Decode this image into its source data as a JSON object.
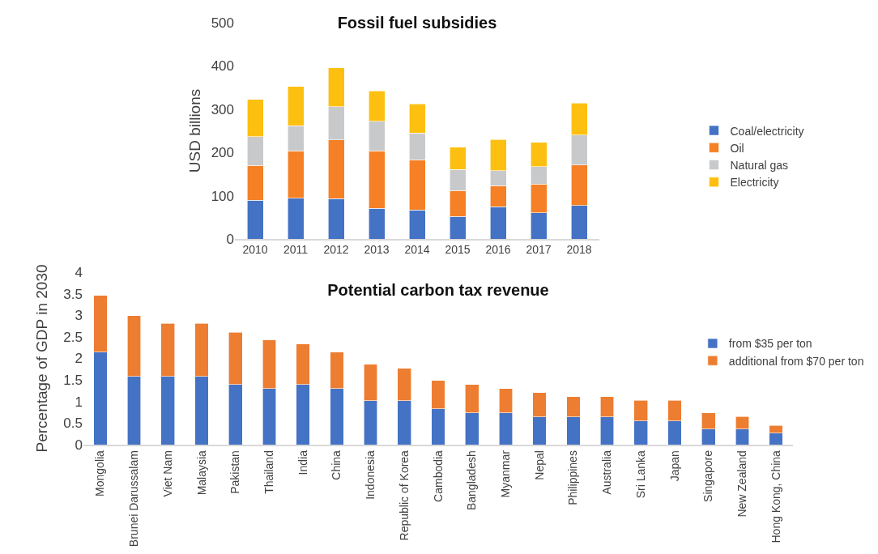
{
  "chart_data": [
    {
      "type": "bar",
      "title": "Fossil fuel subsidies",
      "ylabel": "USD billions",
      "stacked": true,
      "legend": "right",
      "grid": false,
      "categories": [
        "2010",
        "2011",
        "2012",
        "2013",
        "2014",
        "2015",
        "2016",
        "2017",
        "2018"
      ],
      "ylim": [
        0,
        500
      ],
      "yticks": [
        0,
        100,
        200,
        300,
        400,
        500
      ],
      "series": [
        {
          "name": "Coal/electricity",
          "color": "#4472c4",
          "values": [
            89,
            94,
            93,
            71,
            67,
            52,
            74,
            60,
            77
          ]
        },
        {
          "name": "Oil",
          "color": "#f58025",
          "values": [
            81,
            110,
            136,
            133,
            116,
            60,
            49,
            67,
            94
          ]
        },
        {
          "name": "Natural gas",
          "color": "#c8c9ca",
          "values": [
            66,
            58,
            77,
            68,
            62,
            49,
            35,
            40,
            69
          ]
        },
        {
          "name": "Electricity",
          "color": "#fdc010",
          "values": [
            87,
            91,
            90,
            70,
            67,
            51,
            72,
            56,
            74
          ]
        }
      ]
    },
    {
      "type": "bar",
      "title": "Potential carbon tax revenue",
      "ylabel": "Percentage of GDP in 2030",
      "stacked": true,
      "legend": "top right",
      "grid": false,
      "categories": [
        "Mongolia",
        "Brunei Darussalam",
        "Viet Nam",
        "Malaysia",
        "Pakistan",
        "Thailand",
        "India",
        "China",
        "Indonesia",
        "Republic of Korea",
        "Cambodia",
        "Bangladesh",
        "Myanmar",
        "Nepal",
        "Philippines",
        "Australia",
        "Sri Lanka",
        "Japan",
        "Singapore",
        "New Zealand",
        "Hong Kong, China"
      ],
      "ylim": [
        0,
        4
      ],
      "yticks": [
        0,
        0.5,
        1,
        1.5,
        2,
        2.5,
        3,
        3.5,
        4
      ],
      "series": [
        {
          "name": "from $35 per ton",
          "color": "#4472c4",
          "values": [
            2.15,
            1.58,
            1.58,
            1.58,
            1.39,
            1.3,
            1.39,
            1.3,
            1.02,
            1.02,
            0.83,
            0.74,
            0.74,
            0.64,
            0.64,
            0.64,
            0.55,
            0.55,
            0.36,
            0.36,
            0.27
          ]
        },
        {
          "name": "additional from $70 per ton",
          "color": "#ed7d31",
          "values": [
            1.31,
            1.41,
            1.23,
            1.23,
            1.22,
            1.13,
            0.94,
            0.85,
            0.84,
            0.75,
            0.66,
            0.65,
            0.56,
            0.57,
            0.47,
            0.47,
            0.48,
            0.48,
            0.38,
            0.29,
            0.18
          ]
        }
      ]
    }
  ]
}
